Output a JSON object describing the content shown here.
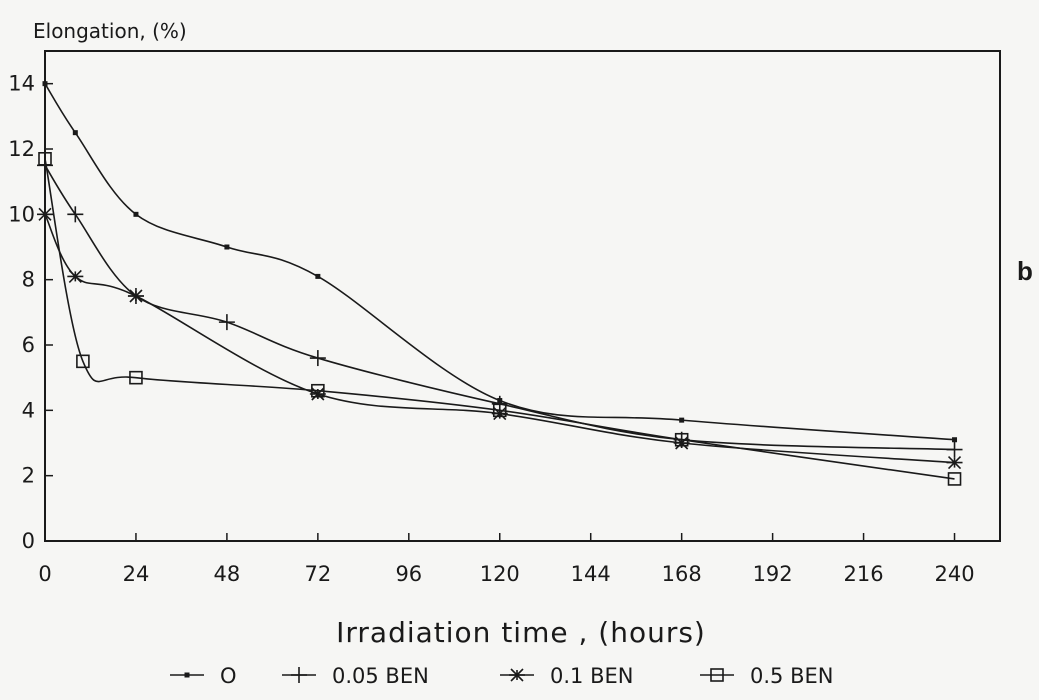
{
  "chart_data": {
    "type": "line",
    "title": "",
    "ylabel": "Elongation, (%)",
    "xlabel": "Irradiation time , (hours)",
    "panel_label": "b",
    "xlim": [
      0,
      252
    ],
    "ylim": [
      0,
      15
    ],
    "xticks": [
      0,
      24,
      48,
      72,
      96,
      120,
      144,
      168,
      192,
      216,
      240
    ],
    "yticks": [
      0,
      2,
      4,
      6,
      8,
      10,
      12,
      14
    ],
    "grid": false,
    "legend_position": "bottom",
    "series": [
      {
        "name": "O",
        "marker": "dot",
        "color": "#1a1a1a",
        "x": [
          0,
          8,
          24,
          48,
          72,
          120,
          168,
          240
        ],
        "y": [
          14.0,
          12.5,
          10.0,
          9.0,
          8.1,
          4.3,
          3.7,
          3.1
        ]
      },
      {
        "name": "0.05 BEN",
        "marker": "plus",
        "color": "#1a1a1a",
        "x": [
          0,
          8,
          24,
          48,
          72,
          120,
          168,
          240
        ],
        "y": [
          11.5,
          10.0,
          7.5,
          6.7,
          5.6,
          4.2,
          3.1,
          2.8
        ]
      },
      {
        "name": "0.1 BEN",
        "marker": "asterisk",
        "color": "#1a1a1a",
        "x": [
          0,
          8,
          24,
          72,
          120,
          168,
          240
        ],
        "y": [
          10.0,
          8.1,
          7.5,
          4.5,
          3.9,
          3.0,
          2.4
        ]
      },
      {
        "name": "0.5 BEN",
        "marker": "square",
        "color": "#1a1a1a",
        "x": [
          0,
          10,
          24,
          72,
          120,
          168,
          240
        ],
        "y": [
          11.7,
          5.5,
          5.0,
          4.6,
          4.0,
          3.1,
          1.9
        ]
      }
    ]
  }
}
